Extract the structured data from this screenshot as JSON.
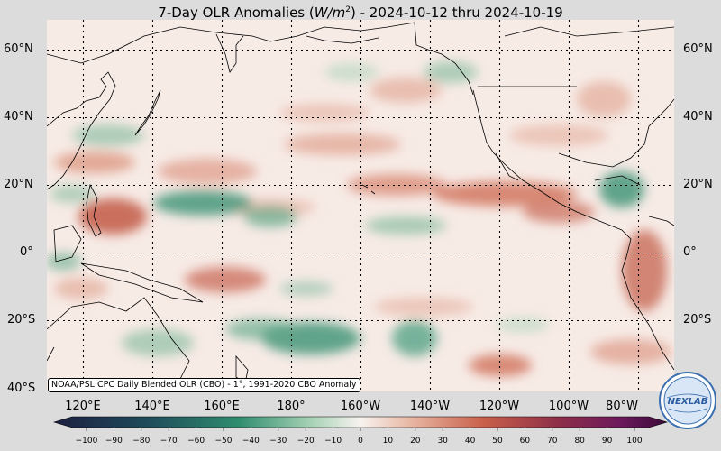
{
  "title": {
    "prefix": "7-Day OLR Anomalies (",
    "unit_var": "W/m",
    "unit_exp": "2",
    "suffix": ") - 2024-10-12 thru 2024-10-19"
  },
  "map": {
    "lat_labels": [
      "60°N",
      "40°N",
      "20°N",
      "0°",
      "20°S",
      "40°S"
    ],
    "lon_labels": [
      "120°E",
      "140°E",
      "160°E",
      "180°",
      "160°W",
      "140°W",
      "120°W",
      "100°W",
      "80°W"
    ],
    "source_note": "NOAA/PSL CPC Daily Blended OLR (CBO) - 1°, 1991-2020 CBO Anomaly",
    "colorbar_ticks": [
      "−100",
      "−90",
      "−80",
      "−70",
      "−60",
      "−50",
      "−40",
      "−30",
      "−20",
      "−10",
      "0",
      "10",
      "20",
      "30",
      "40",
      "50",
      "60",
      "70",
      "80",
      "90",
      "100"
    ],
    "logo_text": "NEXLAB",
    "colors": {
      "ocean_base": "#f7ebe6",
      "positive": "#c9604a",
      "negative": "#2f8c6e",
      "strong_negative": "#1f6b5a",
      "colorbar_neg_end": "#1c2040",
      "colorbar_pos_end": "#3a0a3a"
    }
  }
}
